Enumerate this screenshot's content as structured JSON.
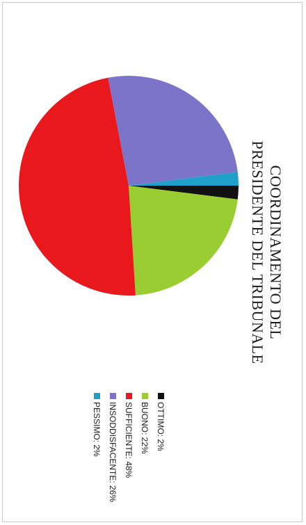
{
  "chart_data": {
    "type": "pie",
    "title": "COORDINAMENTO DEL PRESIDENTE DEL TRIBUNALE",
    "title_lines": [
      "COORDINAMENTO DEL",
      "PRESIDENTE DEL TRIBUNALE"
    ],
    "legend_position": "right",
    "slices": [
      {
        "label": "OTTIMO: 2%",
        "value": 2,
        "color": "#111111"
      },
      {
        "label": "BUONO: 22%",
        "value": 22,
        "color": "#9acd32"
      },
      {
        "label": "SUFFICIENTE: 48%",
        "value": 48,
        "color": "#e8181c"
      },
      {
        "label": "INSODDISFACENTE: 26%",
        "value": 26,
        "color": "#7b74c9"
      },
      {
        "label": "PESSIMO: 2%",
        "value": 2,
        "color": "#1fa0c8"
      }
    ]
  }
}
